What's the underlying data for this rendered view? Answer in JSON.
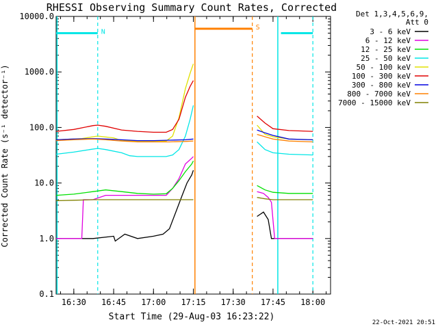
{
  "chart_data": {
    "type": "line",
    "title": "RHESSI Observing Summary Count Rates, Corrected",
    "xlabel": "Start Time (29-Aug-03 16:23:22)",
    "ylabel": "Corrected Count Rate (s⁻¹ detector⁻¹)",
    "footer": "22-Oct-2021 20:51",
    "xlim": [
      16.389,
      18.111
    ],
    "ylim": [
      0.1,
      10000
    ],
    "yscale": "log",
    "x_ticks": [
      {
        "v": 16.5,
        "label": "16:30"
      },
      {
        "v": 16.75,
        "label": "16:45"
      },
      {
        "v": 17.0,
        "label": "17:00"
      },
      {
        "v": 17.25,
        "label": "17:15"
      },
      {
        "v": 17.5,
        "label": "17:30"
      },
      {
        "v": 17.75,
        "label": "17:45"
      },
      {
        "v": 18.0,
        "label": "18:00"
      }
    ],
    "y_ticks": [
      {
        "v": 0.1,
        "label": "0.1"
      },
      {
        "v": 1,
        "label": "1.0"
      },
      {
        "v": 10,
        "label": "10.0"
      },
      {
        "v": 100,
        "label": "100.0"
      },
      {
        "v": 1000,
        "label": "1000.0"
      },
      {
        "v": 10000,
        "label": "10000.0"
      }
    ],
    "legend_header": [
      "Det 1,3,4,5,6,9,",
      "Att 0"
    ],
    "legend_position": "right",
    "night_intervals": {
      "label": "N",
      "color": "#00e6e6",
      "bar_y": 5000,
      "bars": [
        [
          16.389,
          16.65
        ],
        [
          17.8,
          18.0
        ]
      ],
      "solid_lines": [
        16.395,
        17.78
      ],
      "dashed_lines": [
        16.65,
        18.0
      ]
    },
    "saa_intervals": {
      "label": "S",
      "color": "#ff8000",
      "bar_y": 6000,
      "bars": [
        [
          17.26,
          17.62
        ]
      ],
      "solid_lines": [
        17.26
      ],
      "dashed_lines": [
        17.62
      ]
    },
    "series": [
      {
        "name": "3 - 6 keV",
        "color": "#000000",
        "segments": [
          [
            [
              16.389,
              1
            ],
            [
              16.62,
              1
            ],
            [
              16.75,
              1.1
            ],
            [
              16.76,
              0.9
            ],
            [
              16.82,
              1.2
            ],
            [
              16.9,
              1.0
            ],
            [
              17.0,
              1.1
            ],
            [
              17.06,
              1.2
            ],
            [
              17.1,
              1.5
            ],
            [
              17.14,
              3
            ],
            [
              17.18,
              6
            ],
            [
              17.21,
              10
            ],
            [
              17.24,
              14
            ],
            [
              17.25,
              17
            ]
          ],
          [
            [
              17.65,
              2.5
            ],
            [
              17.69,
              3.0
            ],
            [
              17.72,
              2.2
            ],
            [
              17.74,
              1.0
            ],
            [
              17.8,
              1.0
            ],
            [
              18.0,
              1.0
            ]
          ]
        ]
      },
      {
        "name": "6 - 12 keV",
        "color": "#e000e0",
        "segments": [
          [
            [
              16.389,
              1
            ],
            [
              16.55,
              1
            ],
            [
              16.56,
              5
            ],
            [
              16.62,
              5
            ],
            [
              16.7,
              6
            ],
            [
              16.8,
              6
            ],
            [
              16.9,
              6
            ],
            [
              17.0,
              6
            ],
            [
              17.08,
              6
            ],
            [
              17.12,
              8
            ],
            [
              17.16,
              12
            ],
            [
              17.2,
              22
            ],
            [
              17.24,
              28
            ],
            [
              17.25,
              30
            ]
          ],
          [
            [
              17.65,
              7
            ],
            [
              17.69,
              6.5
            ],
            [
              17.72,
              5.5
            ],
            [
              17.74,
              4.5
            ],
            [
              17.76,
              1.0
            ],
            [
              18.0,
              1.0
            ]
          ]
        ]
      },
      {
        "name": "12 - 25 keV",
        "color": "#00e000",
        "segments": [
          [
            [
              16.389,
              6
            ],
            [
              16.5,
              6.3
            ],
            [
              16.62,
              7
            ],
            [
              16.7,
              7.5
            ],
            [
              16.8,
              7
            ],
            [
              16.9,
              6.5
            ],
            [
              17.0,
              6.3
            ],
            [
              17.08,
              6.4
            ],
            [
              17.12,
              8
            ],
            [
              17.16,
              11
            ],
            [
              17.2,
              16
            ],
            [
              17.24,
              22
            ],
            [
              17.25,
              25
            ]
          ],
          [
            [
              17.65,
              9
            ],
            [
              17.7,
              7.5
            ],
            [
              17.75,
              6.8
            ],
            [
              17.85,
              6.5
            ],
            [
              18.0,
              6.5
            ]
          ]
        ]
      },
      {
        "name": "25 - 50 keV",
        "color": "#00e6e6",
        "segments": [
          [
            [
              16.389,
              33
            ],
            [
              16.5,
              36
            ],
            [
              16.6,
              40
            ],
            [
              16.65,
              42
            ],
            [
              16.7,
              40
            ],
            [
              16.8,
              35
            ],
            [
              16.85,
              31
            ],
            [
              16.9,
              30
            ],
            [
              17.0,
              30
            ],
            [
              17.08,
              30
            ],
            [
              17.12,
              32
            ],
            [
              17.16,
              40
            ],
            [
              17.2,
              70
            ],
            [
              17.23,
              140
            ],
            [
              17.25,
              250
            ]
          ],
          [
            [
              17.65,
              55
            ],
            [
              17.7,
              40
            ],
            [
              17.75,
              35
            ],
            [
              17.85,
              33
            ],
            [
              18.0,
              32
            ]
          ]
        ]
      },
      {
        "name": "50 - 100 keV",
        "color": "#e0e000",
        "segments": [
          [
            [
              16.389,
              60
            ],
            [
              16.55,
              63
            ],
            [
              16.62,
              68
            ],
            [
              16.65,
              70
            ],
            [
              16.75,
              65
            ],
            [
              16.8,
              58
            ],
            [
              16.9,
              57
            ],
            [
              17.0,
              57
            ],
            [
              17.08,
              57
            ],
            [
              17.12,
              70
            ],
            [
              17.16,
              150
            ],
            [
              17.2,
              500
            ],
            [
              17.23,
              950
            ],
            [
              17.25,
              1400
            ]
          ],
          [
            [
              17.65,
              110
            ],
            [
              17.7,
              75
            ],
            [
              17.75,
              68
            ],
            [
              17.85,
              62
            ],
            [
              18.0,
              60
            ]
          ]
        ]
      },
      {
        "name": "100 - 300 keV",
        "color": "#e00000",
        "segments": [
          [
            [
              16.389,
              85
            ],
            [
              16.5,
              92
            ],
            [
              16.62,
              108
            ],
            [
              16.65,
              110
            ],
            [
              16.7,
              105
            ],
            [
              16.8,
              90
            ],
            [
              16.9,
              85
            ],
            [
              17.0,
              82
            ],
            [
              17.08,
              82
            ],
            [
              17.12,
              92
            ],
            [
              17.16,
              140
            ],
            [
              17.2,
              350
            ],
            [
              17.23,
              550
            ],
            [
              17.25,
              700
            ]
          ],
          [
            [
              17.65,
              160
            ],
            [
              17.7,
              120
            ],
            [
              17.75,
              95
            ],
            [
              17.85,
              88
            ],
            [
              18.0,
              85
            ]
          ]
        ]
      },
      {
        "name": "300 - 800 keV",
        "color": "#0000e0",
        "segments": [
          [
            [
              16.389,
              60
            ],
            [
              16.5,
              62
            ],
            [
              16.62,
              63
            ],
            [
              16.7,
              62
            ],
            [
              16.8,
              60
            ],
            [
              16.9,
              58
            ],
            [
              17.0,
              58
            ],
            [
              17.1,
              59
            ],
            [
              17.2,
              60
            ],
            [
              17.25,
              62
            ]
          ],
          [
            [
              17.65,
              90
            ],
            [
              17.7,
              80
            ],
            [
              17.75,
              72
            ],
            [
              17.85,
              62
            ],
            [
              18.0,
              60
            ]
          ]
        ]
      },
      {
        "name": "800 - 7000 keV",
        "color": "#ff8000",
        "segments": [
          [
            [
              16.389,
              58
            ],
            [
              16.5,
              60
            ],
            [
              16.62,
              62
            ],
            [
              16.7,
              60
            ],
            [
              16.8,
              57
            ],
            [
              16.9,
              55
            ],
            [
              17.0,
              55
            ],
            [
              17.1,
              55
            ],
            [
              17.2,
              56
            ],
            [
              17.25,
              57
            ]
          ],
          [
            [
              17.65,
              75
            ],
            [
              17.7,
              68
            ],
            [
              17.75,
              62
            ],
            [
              17.85,
              57
            ],
            [
              18.0,
              55
            ]
          ]
        ]
      },
      {
        "name": "7000 - 15000 keV",
        "color": "#808000",
        "segments": [
          [
            [
              16.389,
              4.8
            ],
            [
              16.5,
              4.9
            ],
            [
              16.62,
              5.0
            ],
            [
              16.7,
              5.0
            ],
            [
              16.8,
              5.0
            ],
            [
              16.9,
              5.0
            ],
            [
              17.0,
              5.0
            ],
            [
              17.1,
              5.0
            ],
            [
              17.2,
              5.0
            ],
            [
              17.25,
              5.0
            ]
          ],
          [
            [
              17.65,
              5.5
            ],
            [
              17.7,
              5.2
            ],
            [
              17.75,
              5.0
            ],
            [
              17.85,
              5.0
            ],
            [
              18.0,
              5.0
            ]
          ]
        ]
      }
    ]
  }
}
